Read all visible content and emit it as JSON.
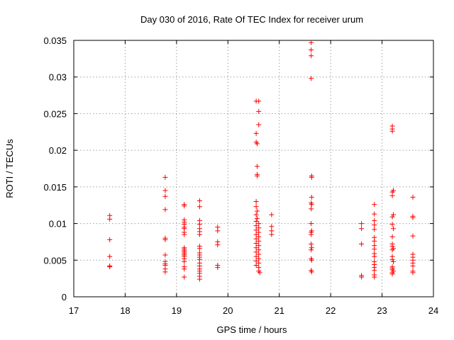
{
  "chart_data": {
    "type": "scatter",
    "title": "Day 030 of 2016, Rate Of TEC Index for receiver urum",
    "xlabel": "GPS time / hours",
    "ylabel": "ROTI / TECUs",
    "xlim": [
      17,
      24
    ],
    "ylim": [
      0,
      0.035
    ],
    "xticks": [
      17,
      18,
      19,
      20,
      21,
      22,
      23,
      24
    ],
    "xtick_labels": [
      "17",
      "18",
      "19",
      "20",
      "21",
      "22",
      "23",
      "24"
    ],
    "yticks": [
      0,
      0.005,
      0.01,
      0.015,
      0.02,
      0.025,
      0.03,
      0.035
    ],
    "ytick_labels": [
      "0",
      "0.005",
      "0.01",
      "0.015",
      "0.02",
      "0.025",
      "0.03",
      "0.035"
    ],
    "grid": true,
    "marker": "+",
    "series": [
      {
        "name": "ROTI",
        "color": "#ff0000",
        "points": [
          [
            17.7,
            0.0111
          ],
          [
            17.7,
            0.0106
          ],
          [
            17.7,
            0.0078
          ],
          [
            17.7,
            0.0055
          ],
          [
            17.7,
            0.0042
          ],
          [
            17.7,
            0.0041
          ],
          [
            18.78,
            0.0163
          ],
          [
            18.78,
            0.0145
          ],
          [
            18.78,
            0.0137
          ],
          [
            18.78,
            0.0119
          ],
          [
            18.78,
            0.008
          ],
          [
            18.78,
            0.0078
          ],
          [
            18.78,
            0.0057
          ],
          [
            18.78,
            0.0048
          ],
          [
            18.78,
            0.0045
          ],
          [
            18.78,
            0.0043
          ],
          [
            18.78,
            0.0038
          ],
          [
            18.78,
            0.0034
          ],
          [
            19.15,
            0.0126
          ],
          [
            19.15,
            0.0124
          ],
          [
            19.15,
            0.0105
          ],
          [
            19.15,
            0.0102
          ],
          [
            19.15,
            0.0099
          ],
          [
            19.15,
            0.0095
          ],
          [
            19.15,
            0.0093
          ],
          [
            19.15,
            0.0088
          ],
          [
            19.15,
            0.0085
          ],
          [
            19.15,
            0.0067
          ],
          [
            19.15,
            0.0065
          ],
          [
            19.15,
            0.0063
          ],
          [
            19.15,
            0.0061
          ],
          [
            19.15,
            0.0059
          ],
          [
            19.15,
            0.0057
          ],
          [
            19.15,
            0.0055
          ],
          [
            19.15,
            0.0052
          ],
          [
            19.15,
            0.0048
          ],
          [
            19.15,
            0.0041
          ],
          [
            19.15,
            0.0038
          ],
          [
            19.15,
            0.0027
          ],
          [
            19.45,
            0.0131
          ],
          [
            19.45,
            0.0123
          ],
          [
            19.45,
            0.0104
          ],
          [
            19.45,
            0.0099
          ],
          [
            19.45,
            0.0093
          ],
          [
            19.45,
            0.0089
          ],
          [
            19.45,
            0.0085
          ],
          [
            19.45,
            0.0069
          ],
          [
            19.45,
            0.0066
          ],
          [
            19.45,
            0.006
          ],
          [
            19.45,
            0.0057
          ],
          [
            19.45,
            0.0054
          ],
          [
            19.45,
            0.0051
          ],
          [
            19.45,
            0.0046
          ],
          [
            19.45,
            0.0042
          ],
          [
            19.45,
            0.0038
          ],
          [
            19.45,
            0.0035
          ],
          [
            19.45,
            0.0032
          ],
          [
            19.45,
            0.0028
          ],
          [
            19.45,
            0.0024
          ],
          [
            19.8,
            0.0095
          ],
          [
            19.8,
            0.009
          ],
          [
            19.8,
            0.0075
          ],
          [
            19.8,
            0.0071
          ],
          [
            19.8,
            0.0043
          ],
          [
            19.8,
            0.004
          ],
          [
            20.55,
            0.0267
          ],
          [
            20.6,
            0.0267
          ],
          [
            20.6,
            0.0253
          ],
          [
            20.6,
            0.0235
          ],
          [
            20.55,
            0.0223
          ],
          [
            20.55,
            0.0211
          ],
          [
            20.57,
            0.0209
          ],
          [
            20.57,
            0.0178
          ],
          [
            20.57,
            0.0167
          ],
          [
            20.57,
            0.0165
          ],
          [
            20.55,
            0.013
          ],
          [
            20.55,
            0.0123
          ],
          [
            20.57,
            0.0117
          ],
          [
            20.55,
            0.0112
          ],
          [
            20.57,
            0.0107
          ],
          [
            20.55,
            0.0103
          ],
          [
            20.6,
            0.01
          ],
          [
            20.55,
            0.0097
          ],
          [
            20.6,
            0.0094
          ],
          [
            20.55,
            0.0091
          ],
          [
            20.6,
            0.0088
          ],
          [
            20.55,
            0.0085
          ],
          [
            20.6,
            0.0082
          ],
          [
            20.55,
            0.0079
          ],
          [
            20.6,
            0.0076
          ],
          [
            20.55,
            0.0073
          ],
          [
            20.6,
            0.007
          ],
          [
            20.55,
            0.0067
          ],
          [
            20.6,
            0.0064
          ],
          [
            20.55,
            0.0061
          ],
          [
            20.6,
            0.0058
          ],
          [
            20.55,
            0.0055
          ],
          [
            20.6,
            0.0052
          ],
          [
            20.55,
            0.0049
          ],
          [
            20.6,
            0.0046
          ],
          [
            20.55,
            0.0043
          ],
          [
            20.6,
            0.004
          ],
          [
            20.6,
            0.0035
          ],
          [
            20.62,
            0.0033
          ],
          [
            20.85,
            0.0112
          ],
          [
            20.85,
            0.0096
          ],
          [
            20.85,
            0.009
          ],
          [
            20.85,
            0.0085
          ],
          [
            21.62,
            0.0347
          ],
          [
            21.62,
            0.0337
          ],
          [
            21.62,
            0.0329
          ],
          [
            21.62,
            0.0298
          ],
          [
            21.63,
            0.0165
          ],
          [
            21.63,
            0.0163
          ],
          [
            21.63,
            0.0136
          ],
          [
            21.62,
            0.0128
          ],
          [
            21.63,
            0.0126
          ],
          [
            21.62,
            0.012
          ],
          [
            21.62,
            0.01
          ],
          [
            21.63,
            0.009
          ],
          [
            21.62,
            0.0088
          ],
          [
            21.62,
            0.0085
          ],
          [
            21.62,
            0.0072
          ],
          [
            21.63,
            0.0067
          ],
          [
            21.62,
            0.0064
          ],
          [
            21.62,
            0.0052
          ],
          [
            21.63,
            0.005
          ],
          [
            21.62,
            0.0036
          ],
          [
            21.63,
            0.0034
          ],
          [
            22.6,
            0.01
          ],
          [
            22.6,
            0.0093
          ],
          [
            22.6,
            0.0072
          ],
          [
            22.6,
            0.0029
          ],
          [
            22.6,
            0.0027
          ],
          [
            22.85,
            0.0126
          ],
          [
            22.85,
            0.0113
          ],
          [
            22.85,
            0.0104
          ],
          [
            22.85,
            0.0098
          ],
          [
            22.85,
            0.0092
          ],
          [
            22.85,
            0.0081
          ],
          [
            22.85,
            0.0076
          ],
          [
            22.85,
            0.007
          ],
          [
            22.85,
            0.0065
          ],
          [
            22.85,
            0.0059
          ],
          [
            22.85,
            0.0055
          ],
          [
            22.85,
            0.0048
          ],
          [
            22.85,
            0.0044
          ],
          [
            22.85,
            0.004
          ],
          [
            22.85,
            0.0036
          ],
          [
            22.85,
            0.003
          ],
          [
            22.85,
            0.0027
          ],
          [
            23.2,
            0.0233
          ],
          [
            23.2,
            0.0229
          ],
          [
            23.2,
            0.0226
          ],
          [
            23.22,
            0.0145
          ],
          [
            23.2,
            0.0143
          ],
          [
            23.2,
            0.0138
          ],
          [
            23.22,
            0.0112
          ],
          [
            23.2,
            0.0109
          ],
          [
            23.2,
            0.0099
          ],
          [
            23.22,
            0.0093
          ],
          [
            23.2,
            0.0082
          ],
          [
            23.2,
            0.0072
          ],
          [
            23.2,
            0.0069
          ],
          [
            23.22,
            0.0066
          ],
          [
            23.2,
            0.0064
          ],
          [
            23.2,
            0.0055
          ],
          [
            23.2,
            0.0051
          ],
          [
            23.22,
            0.0048
          ],
          [
            23.2,
            0.0041
          ],
          [
            23.2,
            0.0039
          ],
          [
            23.2,
            0.0037
          ],
          [
            23.22,
            0.0035
          ],
          [
            23.2,
            0.0033
          ],
          [
            23.2,
            0.0031
          ],
          [
            23.6,
            0.0136
          ],
          [
            23.6,
            0.011
          ],
          [
            23.6,
            0.0108
          ],
          [
            23.6,
            0.0083
          ],
          [
            23.6,
            0.0058
          ],
          [
            23.6,
            0.0054
          ],
          [
            23.6,
            0.005
          ],
          [
            23.6,
            0.0046
          ],
          [
            23.6,
            0.0042
          ],
          [
            23.6,
            0.0035
          ],
          [
            23.6,
            0.0033
          ]
        ]
      }
    ]
  }
}
